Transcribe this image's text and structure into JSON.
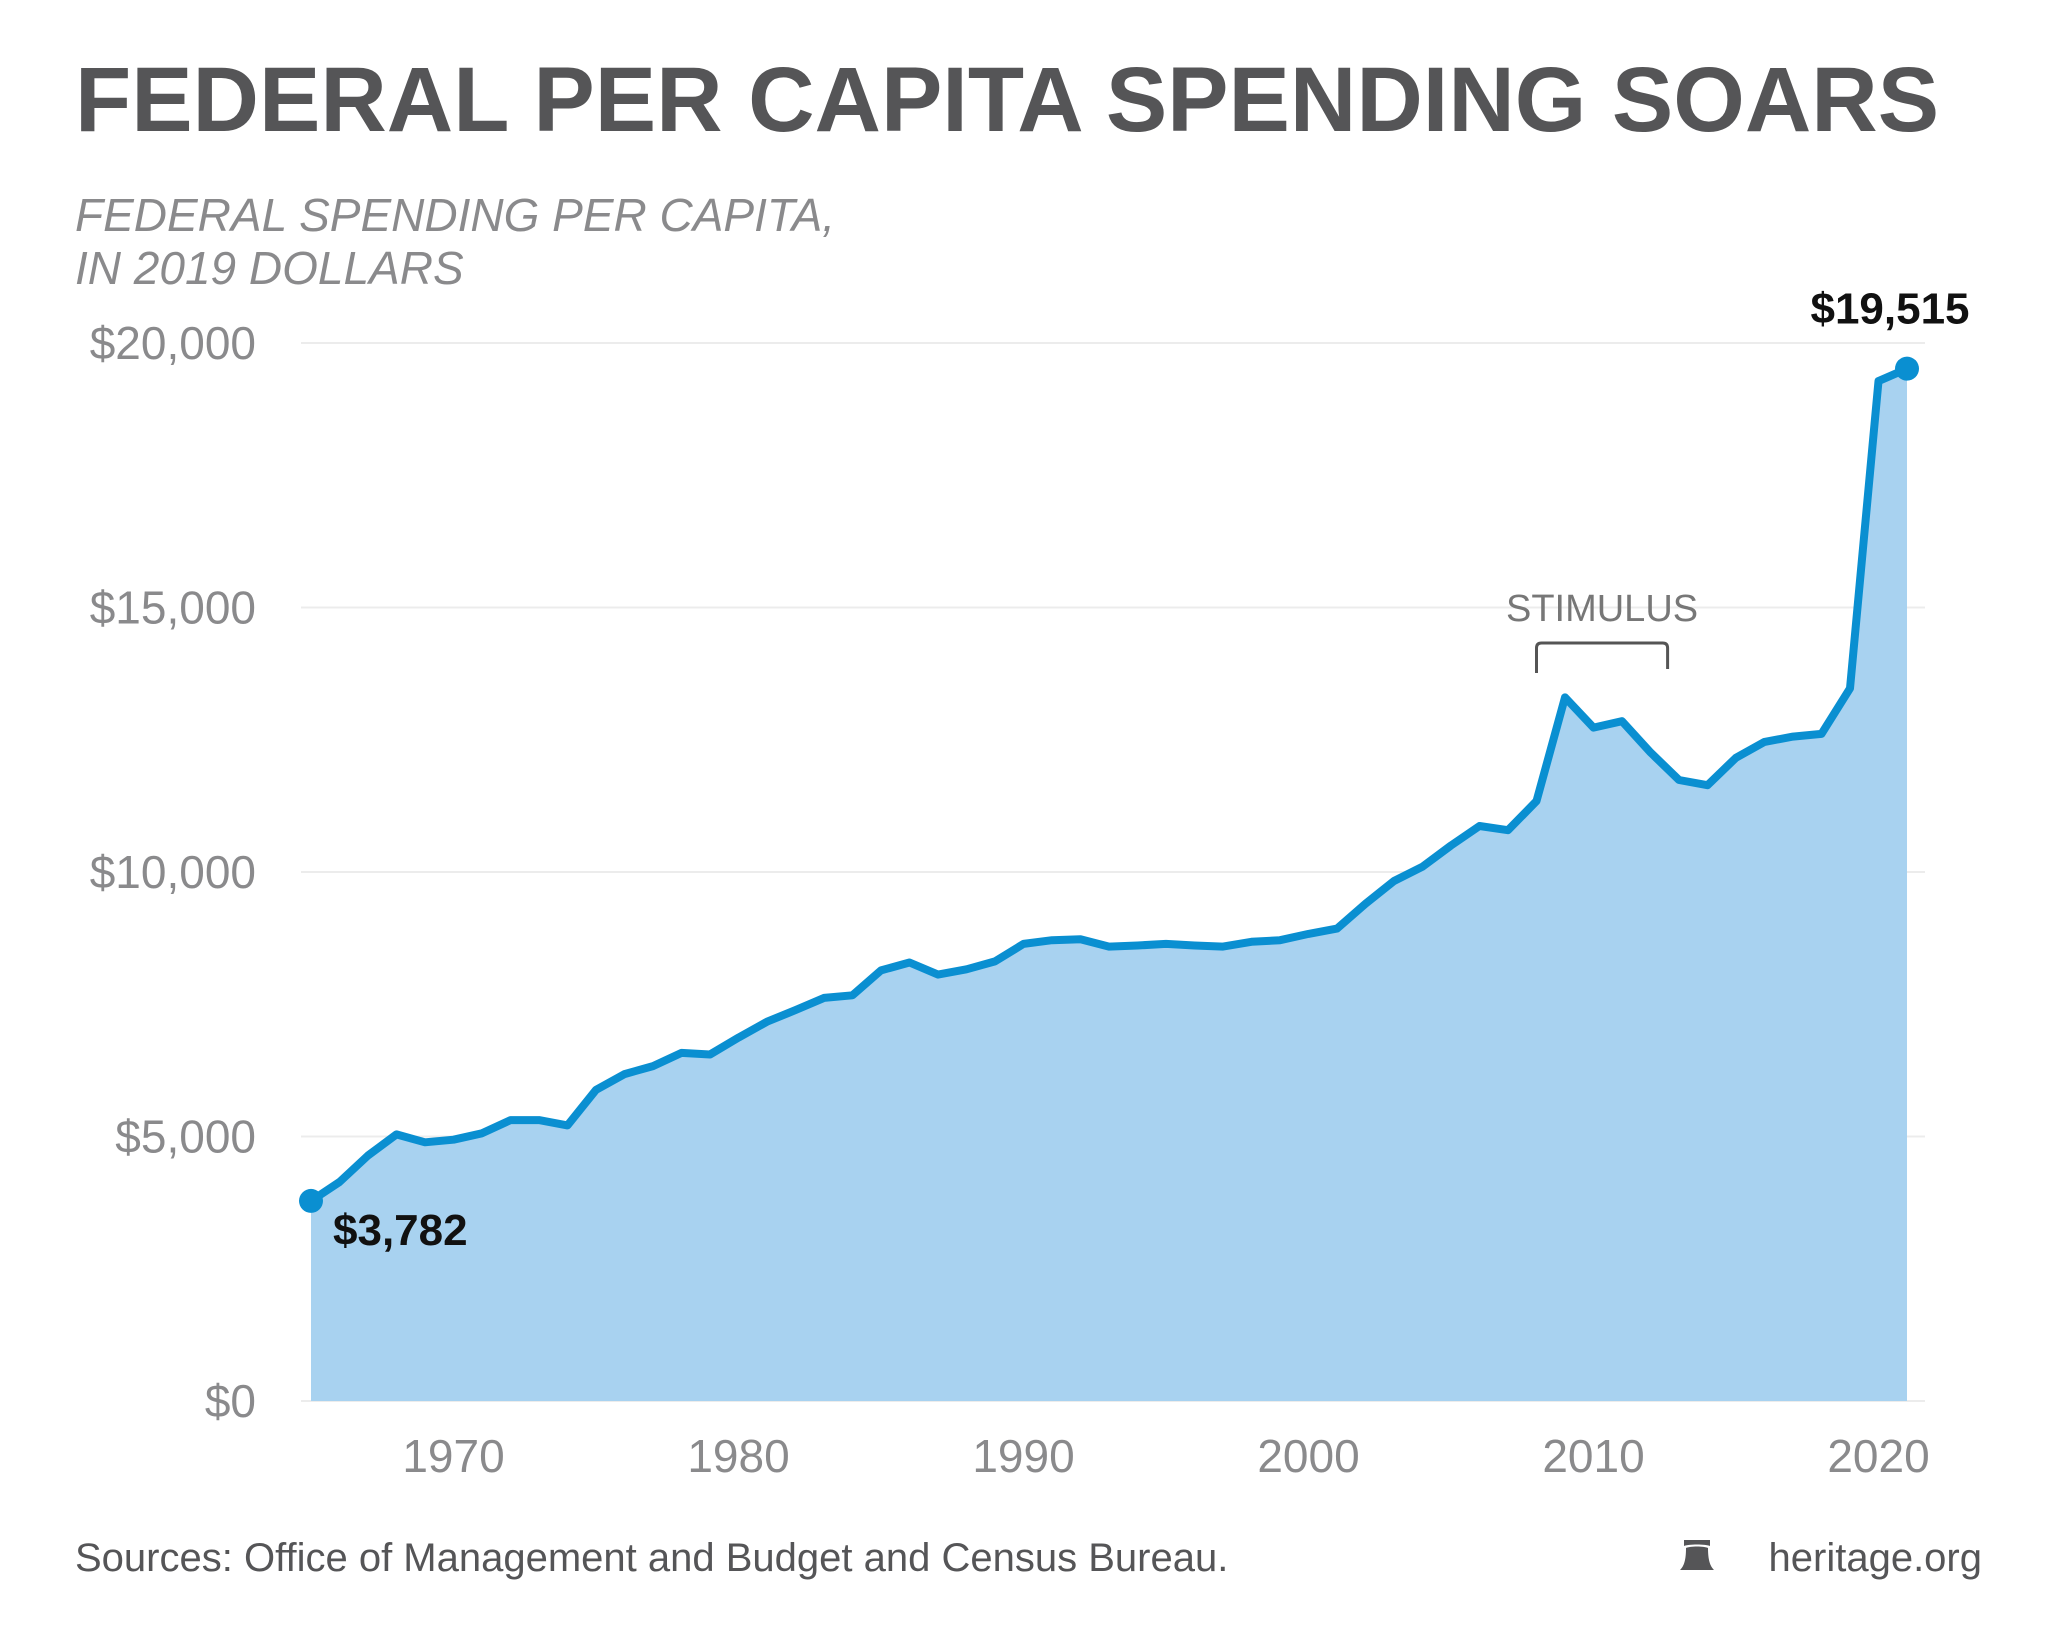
{
  "chart_data": {
    "type": "area",
    "title": "FEDERAL PER CAPITA SPENDING SOARS",
    "subtitle_lines": [
      "FEDERAL SPENDING PER CAPITA,",
      "IN 2019 DOLLARS"
    ],
    "xlabel": "",
    "ylabel": "",
    "xlim": [
      1965,
      2021
    ],
    "ylim": [
      0,
      20000
    ],
    "grid": true,
    "x_ticks": [
      1970,
      1980,
      1990,
      2000,
      2010,
      2020
    ],
    "x_tick_labels": [
      "1970",
      "1980",
      "1990",
      "2000",
      "2010",
      "2020"
    ],
    "y_ticks": [
      0,
      5000,
      10000,
      15000,
      20000
    ],
    "y_tick_labels": [
      "$0",
      "$5,000",
      "$10,000",
      "$15,000",
      "$20,000"
    ],
    "x": [
      1965,
      1966,
      1967,
      1968,
      1969,
      1970,
      1971,
      1972,
      1973,
      1974,
      1975,
      1976,
      1977,
      1978,
      1979,
      1980,
      1981,
      1982,
      1983,
      1984,
      1985,
      1986,
      1987,
      1988,
      1989,
      1990,
      1991,
      1992,
      1993,
      1994,
      1995,
      1996,
      1997,
      1998,
      1999,
      2000,
      2001,
      2002,
      2003,
      2004,
      2005,
      2006,
      2007,
      2008,
      2009,
      2010,
      2011,
      2012,
      2013,
      2014,
      2015,
      2016,
      2017,
      2018,
      2019,
      2020,
      2021
    ],
    "series": [
      {
        "name": "Federal spending per capita (2019 dollars)",
        "values": [
          3782,
          4140,
          4640,
          5040,
          4890,
          4940,
          5060,
          5310,
          5310,
          5210,
          5880,
          6180,
          6330,
          6580,
          6550,
          6870,
          7170,
          7390,
          7620,
          7670,
          8140,
          8290,
          8060,
          8160,
          8310,
          8640,
          8710,
          8730,
          8590,
          8610,
          8640,
          8610,
          8590,
          8680,
          8710,
          8830,
          8930,
          9400,
          9830,
          10100,
          10500,
          10870,
          10790,
          11340,
          13300,
          12730,
          12850,
          12260,
          11740,
          11640,
          12160,
          12460,
          12560,
          12610,
          13470,
          19280,
          19515
        ]
      }
    ],
    "data_labels": {
      "start": "$3,782",
      "end": "$19,515"
    },
    "annotations": [
      {
        "text": "STIMULUS",
        "x_range": [
          2008,
          2012.6
        ]
      }
    ],
    "colors": {
      "line": "#0a8fd1",
      "fill": "#a8d2f0"
    }
  },
  "footer": {
    "sources": "Sources: Office of Management and Budget and Census Bureau.",
    "brand": "heritage.org",
    "brand_icon": "bell-icon"
  }
}
